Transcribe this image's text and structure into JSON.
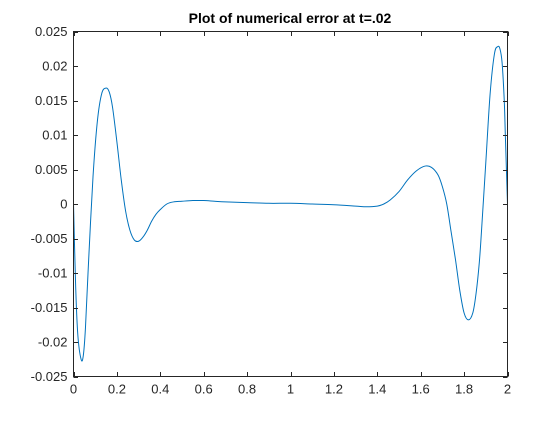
{
  "chart_data": {
    "type": "line",
    "title": "Plot of numerical error at t=.02",
    "xlabel": "",
    "ylabel": "",
    "xlim": [
      0,
      2
    ],
    "ylim": [
      -0.025,
      0.025
    ],
    "grid": false,
    "legend": "none",
    "xticks": [
      0,
      0.2,
      0.4,
      0.6,
      0.8,
      1,
      1.2,
      1.4,
      1.6,
      1.8,
      2
    ],
    "xtick_labels": [
      "0",
      "0.2",
      "0.4",
      "0.6",
      "0.8",
      "1",
      "1.2",
      "1.4",
      "1.6",
      "1.8",
      "2"
    ],
    "yticks": [
      0.025,
      0.02,
      0.015,
      0.01,
      0.005,
      0,
      -0.005,
      -0.01,
      -0.015,
      -0.02,
      -0.025
    ],
    "ytick_labels": [
      "0.025",
      "0.02",
      "0.015",
      "0.01",
      "0.005",
      "0",
      "-0.005",
      "-0.01",
      "-0.015",
      "-0.02",
      "-0.025"
    ],
    "series_color": "#0072BD",
    "series": [
      {
        "x": [
          0,
          0.01,
          0.02,
          0.035,
          0.045,
          0.055,
          0.07,
          0.09,
          0.11,
          0.13,
          0.15,
          0.165,
          0.18,
          0.2,
          0.22,
          0.24,
          0.26,
          0.28,
          0.3,
          0.32,
          0.34,
          0.36,
          0.38,
          0.4,
          0.43,
          0.46,
          0.5,
          0.55,
          0.6,
          0.65,
          0.7,
          0.8,
          0.9,
          1.0,
          1.1,
          1.2,
          1.3,
          1.35,
          1.4,
          1.43,
          1.46,
          1.5,
          1.54,
          1.58,
          1.62,
          1.65,
          1.68,
          1.7,
          1.72,
          1.74,
          1.76,
          1.78,
          1.8,
          1.82,
          1.84,
          1.855,
          1.87,
          1.88,
          1.9,
          1.92,
          1.94,
          1.955,
          1.965,
          1.975,
          1.985,
          1.99,
          1.995,
          2.0
        ],
        "y": [
          0.0,
          -0.012,
          -0.019,
          -0.0225,
          -0.022,
          -0.018,
          -0.008,
          0.004,
          0.012,
          0.016,
          0.0168,
          0.0162,
          0.014,
          0.009,
          0.0035,
          -0.001,
          -0.0038,
          -0.0052,
          -0.0054,
          -0.0048,
          -0.0038,
          -0.0025,
          -0.0015,
          -0.0008,
          0.0,
          0.0003,
          0.0004,
          0.0005,
          0.0005,
          0.0004,
          0.0003,
          0.0002,
          0.0001,
          0.0001,
          0.0,
          -0.0001,
          -0.0003,
          -0.0004,
          -0.0003,
          0.0,
          0.0006,
          0.0018,
          0.0035,
          0.0048,
          0.0055,
          0.0053,
          0.0042,
          0.0025,
          0.0,
          -0.004,
          -0.008,
          -0.0125,
          -0.0158,
          -0.0168,
          -0.0158,
          -0.013,
          -0.0085,
          -0.004,
          0.006,
          0.016,
          0.0218,
          0.0228,
          0.0225,
          0.0205,
          0.015,
          0.01,
          0.005,
          0.0
        ]
      }
    ]
  }
}
